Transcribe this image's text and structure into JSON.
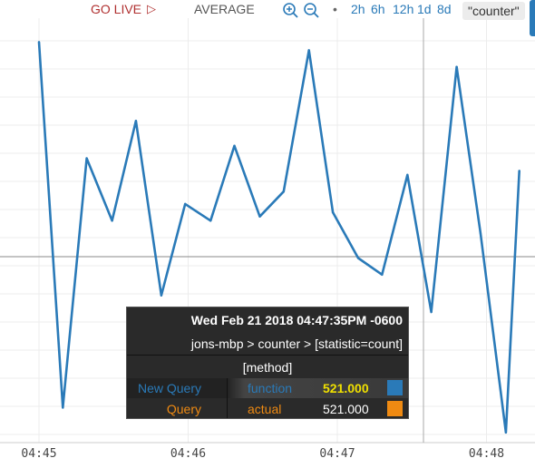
{
  "toolbar": {
    "go_live_label": "GO LIVE",
    "go_live_icon": "play-triangle-icon",
    "aggregation_label": "AVERAGE",
    "zoom_in_icon": "zoom-in-icon",
    "zoom_out_icon": "zoom-out-icon",
    "separator": "•",
    "time_ranges": [
      "2h",
      "6h",
      "12h",
      "1d",
      "8d"
    ],
    "series_pill": "\"counter\""
  },
  "colors": {
    "line": "#2a7ab8",
    "go_live": "#b03030",
    "new_query": "#2a7ab8",
    "query": "#ef8a12",
    "value_highlight": "#f0e000"
  },
  "tooltip": {
    "timestamp": "Wed Feb 21 2018 04:47:35PM -0600",
    "path": "jons-mbp > counter > [statistic=count]",
    "group_label": "[method]",
    "rows": [
      {
        "query": "New Query",
        "function": "function",
        "value": "521.000",
        "color": "#2a7ab8"
      },
      {
        "query": "Query",
        "function": "actual",
        "value": "521.000",
        "color": "#ef8a12"
      }
    ]
  },
  "chart_data": {
    "type": "line",
    "x_tick_labels": [
      "04:45",
      "04:46",
      "04:47",
      "04:48"
    ],
    "x_range_minutes": [
      0,
      3.22
    ],
    "y_range": [
      0,
      100
    ],
    "grid": true,
    "series": [
      {
        "color": "#2a7ab8",
        "points": [
          [
            0.0,
            96
          ],
          [
            0.16,
            8
          ],
          [
            0.32,
            68
          ],
          [
            0.49,
            53
          ],
          [
            0.65,
            77
          ],
          [
            0.82,
            35
          ],
          [
            0.98,
            57
          ],
          [
            1.15,
            53
          ],
          [
            1.31,
            71
          ],
          [
            1.48,
            54
          ],
          [
            1.64,
            60
          ],
          [
            1.81,
            94
          ],
          [
            1.97,
            55
          ],
          [
            2.14,
            44
          ],
          [
            2.3,
            40
          ],
          [
            2.47,
            64
          ],
          [
            2.63,
            31
          ],
          [
            2.8,
            90
          ],
          [
            2.96,
            50
          ],
          [
            3.13,
            2
          ],
          [
            3.22,
            65
          ]
        ]
      }
    ]
  }
}
